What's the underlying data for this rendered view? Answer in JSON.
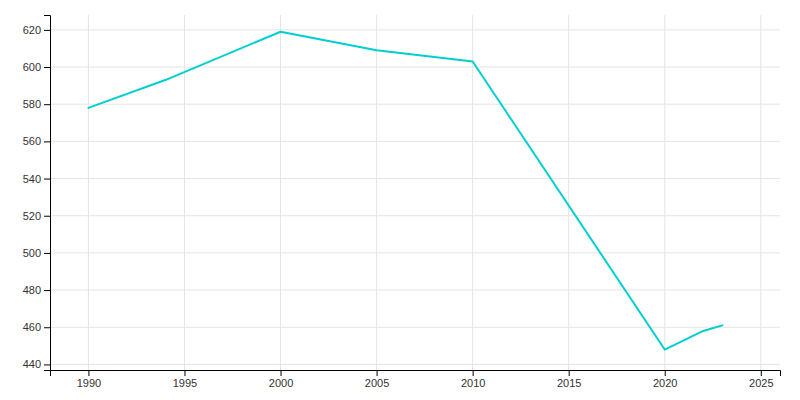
{
  "chart_data": {
    "type": "line",
    "x": [
      1990,
      1994,
      2000,
      2005,
      2010,
      2020,
      2022,
      2023
    ],
    "values": [
      578,
      593,
      619,
      609,
      603,
      448,
      458,
      461
    ],
    "color": "#00CED1",
    "xlim": [
      1988,
      2026
    ],
    "ylim": [
      437,
      628
    ],
    "xticks": [
      1990,
      1995,
      2000,
      2005,
      2010,
      2015,
      2020,
      2025
    ],
    "yticks": [
      440,
      460,
      480,
      500,
      520,
      540,
      560,
      580,
      600,
      620
    ],
    "grid": true
  }
}
